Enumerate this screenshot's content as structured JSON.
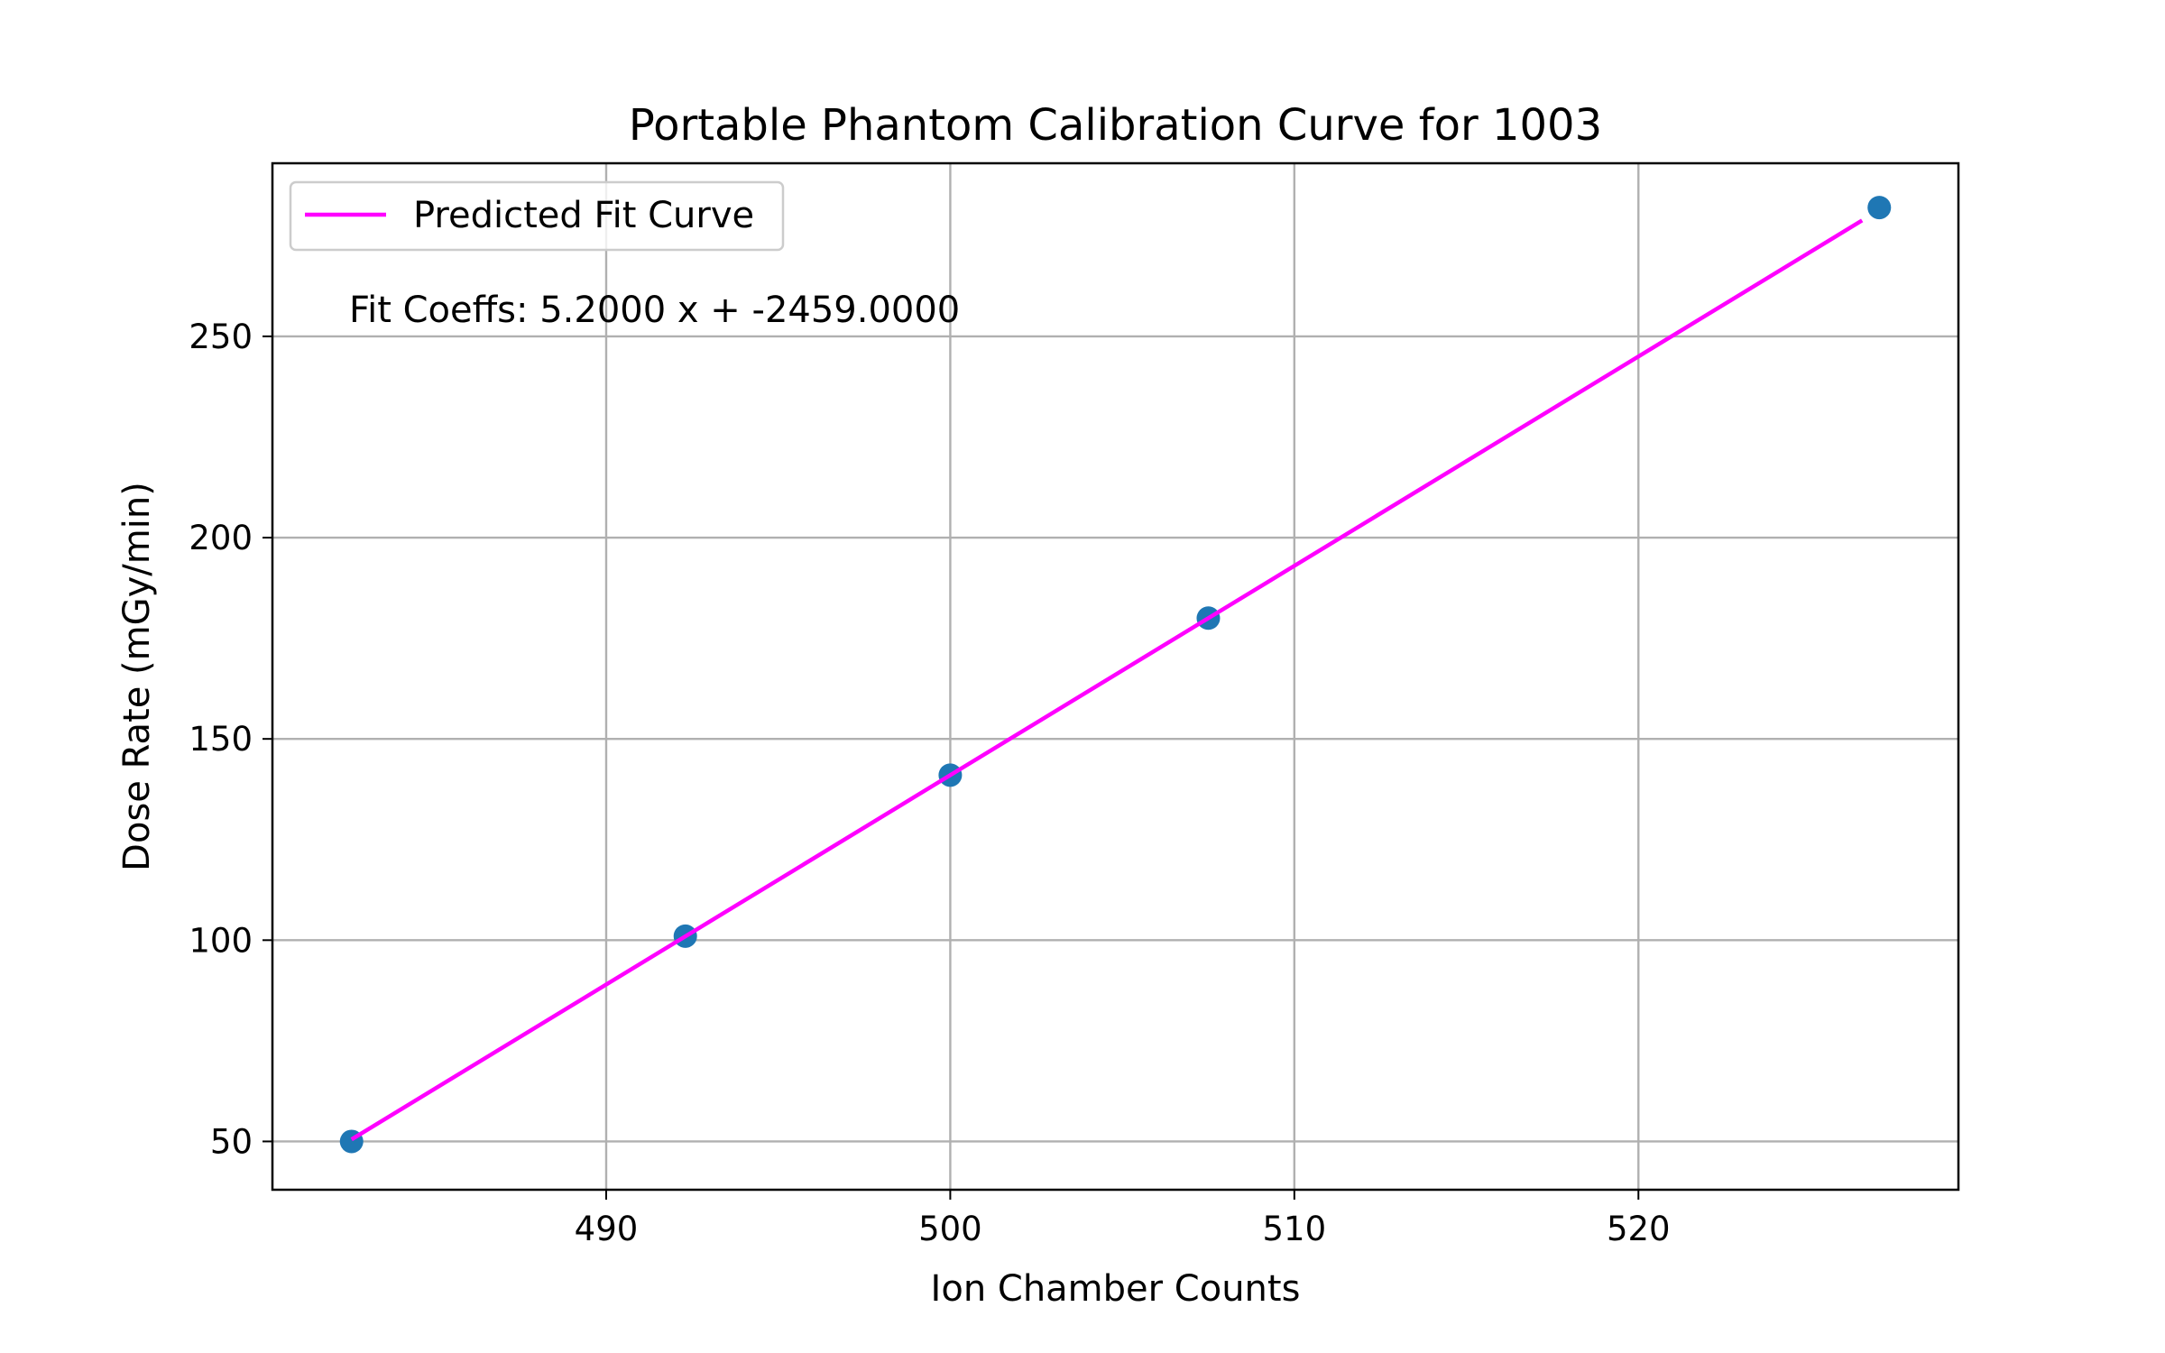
{
  "chart_data": {
    "type": "scatter",
    "title": "Portable Phantom Calibration Curve for 1003",
    "xlabel": "Ion Chamber Counts",
    "ylabel": "Dose Rate (mGy/min)",
    "xlim": [
      480.3,
      529.3
    ],
    "ylim": [
      38,
      293
    ],
    "xticks": [
      490,
      500,
      510,
      520
    ],
    "yticks": [
      50,
      100,
      150,
      200,
      250
    ],
    "grid": true,
    "legend_position": "top-left",
    "series": [
      {
        "kind": "scatter",
        "color": "#1f77b4",
        "points": [
          {
            "x": 482.6,
            "y": 50
          },
          {
            "x": 492.3,
            "y": 101
          },
          {
            "x": 500.0,
            "y": 141
          },
          {
            "x": 507.5,
            "y": 180
          },
          {
            "x": 527.0,
            "y": 282
          }
        ]
      },
      {
        "kind": "line",
        "name": "Predicted Fit Curve",
        "color": "#ff00ff",
        "points": [
          {
            "x": 482.6,
            "y": 50.5
          },
          {
            "x": 526.5,
            "y": 278.8
          }
        ]
      }
    ],
    "annotation": "Fit Coeffs: 5.2000 x + -2459.0000"
  }
}
